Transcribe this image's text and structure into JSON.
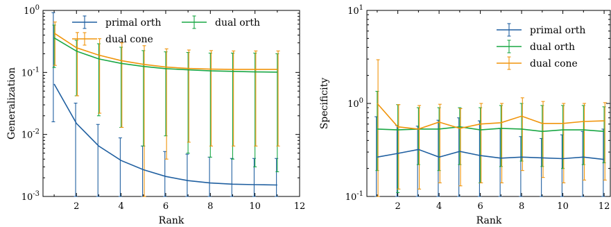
{
  "figure_colors": {
    "primal orth": "#1f5fa0",
    "dual orth": "#19a744",
    "dual cone": "#f0940a"
  },
  "chart_data": [
    {
      "type": "line",
      "xlabel": "Rank",
      "ylabel": "Generalization",
      "yscale": "log",
      "xlim": [
        0.5,
        12
      ],
      "ylim": [
        0.001,
        1
      ],
      "x_ticks": [
        "2",
        "4",
        "6",
        "8",
        "10",
        "12"
      ],
      "y_ticks": [
        "10^-3",
        "10^-2",
        "10^-1",
        "10^0"
      ],
      "legend_location": "top",
      "series": [
        {
          "name": "primal orth",
          "x": [
            1,
            2,
            3,
            4,
            5,
            6,
            7,
            8,
            9,
            10,
            11
          ],
          "y": [
            0.065,
            0.015,
            0.0065,
            0.0038,
            0.0027,
            0.0021,
            0.0018,
            0.00165,
            0.00158,
            0.00155,
            0.00153
          ],
          "err_lo": [
            0.016,
            0.001,
            0.001,
            0.001,
            0.001,
            0.001,
            0.001,
            0.001,
            0.001,
            0.001,
            0.001
          ],
          "err_hi": [
            0.92,
            0.032,
            0.0145,
            0.0088,
            0.0065,
            0.0053,
            0.0048,
            0.0043,
            0.0041,
            0.0041,
            0.0041
          ]
        },
        {
          "name": "dual orth",
          "x": [
            1,
            2,
            3,
            4,
            5,
            6,
            7,
            8,
            9,
            10,
            11
          ],
          "y": [
            0.36,
            0.22,
            0.165,
            0.14,
            0.125,
            0.115,
            0.11,
            0.106,
            0.104,
            0.102,
            0.101
          ],
          "err_lo": [
            0.12,
            0.042,
            0.02,
            0.013,
            0.0065,
            0.0095,
            0.005,
            0.0043,
            0.004,
            0.003,
            0.0025
          ],
          "err_hi": [
            0.58,
            0.33,
            0.29,
            0.255,
            0.225,
            0.215,
            0.21,
            0.205,
            0.205,
            0.205,
            0.2
          ]
        },
        {
          "name": "dual cone",
          "x": [
            1,
            2,
            3,
            4,
            5,
            6,
            7,
            8,
            9,
            10,
            11
          ],
          "y": [
            0.43,
            0.25,
            0.19,
            0.155,
            0.135,
            0.122,
            0.116,
            0.113,
            0.112,
            0.112,
            0.112
          ],
          "err_lo": [
            0.13,
            0.042,
            0.022,
            0.013,
            0.001,
            0.004,
            0.0075,
            0.0065,
            0.0065,
            0.0065,
            0.0065
          ],
          "err_hi": [
            0.65,
            0.44,
            0.35,
            0.3,
            0.27,
            0.24,
            0.23,
            0.225,
            0.222,
            0.222,
            0.222
          ]
        }
      ]
    },
    {
      "type": "line",
      "xlabel": "Rank",
      "ylabel": "Specificity",
      "yscale": "log",
      "xlim": [
        0.5,
        12.3
      ],
      "ylim": [
        0.1,
        10
      ],
      "x_ticks": [
        "2",
        "4",
        "6",
        "8",
        "10",
        "12"
      ],
      "y_ticks": [
        "10^-1",
        "10^0",
        "10^1"
      ],
      "legend_location": "top-right",
      "series": [
        {
          "name": "primal orth",
          "x": [
            1,
            2,
            3,
            4,
            5,
            6,
            7,
            8,
            9,
            10,
            11,
            12
          ],
          "y": [
            0.265,
            0.29,
            0.32,
            0.265,
            0.305,
            0.275,
            0.258,
            0.265,
            0.26,
            0.255,
            0.265,
            0.25
          ],
          "err_lo": [
            0.1,
            0.1,
            0.1,
            0.1,
            0.1,
            0.1,
            0.1,
            0.1,
            0.1,
            0.1,
            0.1,
            0.1
          ],
          "err_hi": [
            0.72,
            0.58,
            0.57,
            0.66,
            0.7,
            0.65,
            0.54,
            0.44,
            0.42,
            0.46,
            0.5,
            0.53
          ]
        },
        {
          "name": "dual orth",
          "x": [
            1,
            2,
            3,
            4,
            5,
            6,
            7,
            8,
            9,
            10,
            11,
            12
          ],
          "y": [
            0.53,
            0.52,
            0.53,
            0.53,
            0.56,
            0.52,
            0.54,
            0.53,
            0.5,
            0.52,
            0.52,
            0.5
          ],
          "err_lo": [
            0.19,
            0.11,
            0.22,
            0.19,
            0.22,
            0.14,
            0.21,
            0.24,
            0.21,
            0.2,
            0.22,
            0.23
          ],
          "err_hi": [
            1.35,
            0.97,
            0.9,
            0.9,
            0.9,
            0.9,
            0.95,
            1.0,
            0.95,
            0.95,
            0.95,
            0.92
          ]
        },
        {
          "name": "dual cone",
          "x": [
            1,
            2,
            3,
            4,
            5,
            6,
            7,
            8,
            9,
            10,
            11,
            12
          ],
          "y": [
            1.0,
            0.56,
            0.53,
            0.63,
            0.54,
            0.6,
            0.62,
            0.73,
            0.61,
            0.61,
            0.64,
            0.65
          ],
          "err_lo": [
            0.1,
            0.12,
            0.12,
            0.14,
            0.13,
            0.14,
            0.14,
            0.19,
            0.16,
            0.14,
            0.15,
            0.15
          ],
          "err_hi": [
            2.95,
            0.97,
            0.95,
            0.98,
            0.88,
            1.0,
            1.0,
            1.15,
            1.05,
            1.0,
            1.0,
            1.02
          ]
        }
      ]
    }
  ]
}
